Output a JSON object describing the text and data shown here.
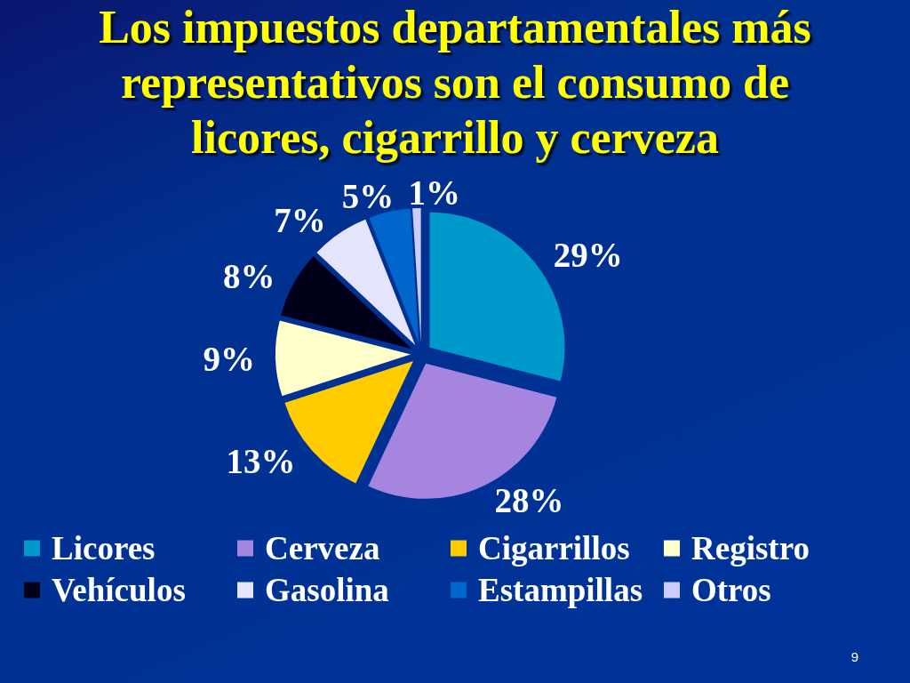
{
  "chart_data": {
    "type": "pie",
    "title": "Los impuestos departamentales más representativos son el consumo de licores, cigarrillo y cerveza",
    "categories": [
      "Licores",
      "Cerveza",
      "Cigarrillos",
      "Registro",
      "Vehículos",
      "Gasolina",
      "Estampillas",
      "Otros"
    ],
    "values": [
      29,
      28,
      13,
      9,
      8,
      7,
      5,
      1
    ],
    "colors": [
      "#0099cc",
      "#a585e0",
      "#ffcc00",
      "#ffffcc",
      "#00001a",
      "#e4e4fc",
      "#0066cc",
      "#ccccff"
    ],
    "value_labels": [
      "29%",
      "28%",
      "13%",
      "9%",
      "8%",
      "7%",
      "5%",
      "1%"
    ],
    "legend": "bottom",
    "annotations": [
      "9"
    ]
  }
}
